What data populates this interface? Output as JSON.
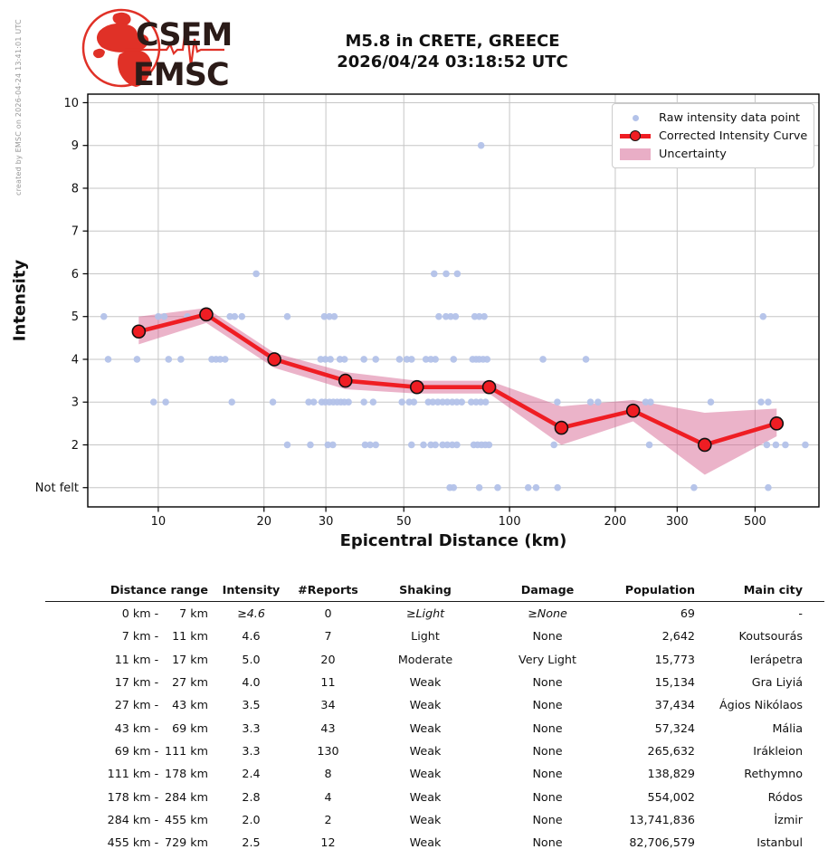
{
  "watermark": "created by EMSC on 2026-04-24 13:41:01 UTC",
  "logo": {
    "org_top": "CSEM",
    "org_bottom": "EMSC"
  },
  "title": {
    "line1": "M5.8 in CRETE, GREECE",
    "line2": "2026/04/24 03:18:52 UTC"
  },
  "chart_data": {
    "type": "scatter",
    "title": "M5.8 in CRETE, GREECE 2026/04/24 03:18:52 UTC",
    "xlabel": "Epicentral Distance (km)",
    "ylabel": "Intensity",
    "x_scale": "log",
    "xlim": [
      6.3,
      760
    ],
    "ylim": [
      0.55,
      10.2
    ],
    "x_ticks": [
      10,
      20,
      30,
      50,
      100,
      200,
      300,
      500
    ],
    "y_ticks": {
      "values": [
        10,
        9,
        8,
        7,
        6,
        5,
        4,
        3,
        2,
        1
      ],
      "labels": [
        "10",
        "9",
        "8",
        "7",
        "6",
        "5",
        "4",
        "3",
        "2",
        "Not felt"
      ]
    },
    "grid": true,
    "legend_position": "upper right",
    "raw_points": {
      "label": "Raw intensity data point",
      "color": "#b3c2e9",
      "points_km_intensity": [
        [
          83,
          9
        ],
        [
          19,
          6
        ],
        [
          61,
          6
        ],
        [
          66,
          6
        ],
        [
          71,
          6
        ],
        [
          7,
          5
        ],
        [
          10,
          5
        ],
        [
          10.4,
          5
        ],
        [
          12.1,
          5
        ],
        [
          16,
          5
        ],
        [
          16.5,
          5
        ],
        [
          17.3,
          5
        ],
        [
          23.3,
          5
        ],
        [
          29.7,
          5
        ],
        [
          30.7,
          5
        ],
        [
          31.7,
          5
        ],
        [
          62.9,
          5
        ],
        [
          65.9,
          5
        ],
        [
          68,
          5
        ],
        [
          70.2,
          5
        ],
        [
          79.6,
          5
        ],
        [
          82,
          5
        ],
        [
          84.7,
          5
        ],
        [
          527,
          5
        ],
        [
          7.2,
          4
        ],
        [
          8.7,
          4
        ],
        [
          10.7,
          4
        ],
        [
          11.6,
          4
        ],
        [
          14.2,
          4
        ],
        [
          14.6,
          4
        ],
        [
          15,
          4
        ],
        [
          15.5,
          4
        ],
        [
          20.9,
          4
        ],
        [
          21.5,
          4
        ],
        [
          29,
          4
        ],
        [
          29.9,
          4
        ],
        [
          30.9,
          4
        ],
        [
          32.9,
          4
        ],
        [
          33.9,
          4
        ],
        [
          38.5,
          4
        ],
        [
          41.6,
          4
        ],
        [
          48.6,
          4
        ],
        [
          51,
          4
        ],
        [
          52.6,
          4
        ],
        [
          57.8,
          4
        ],
        [
          59.7,
          4
        ],
        [
          61.5,
          4
        ],
        [
          69.3,
          4
        ],
        [
          78.5,
          4
        ],
        [
          80.3,
          4
        ],
        [
          82,
          4
        ],
        [
          84.1,
          4
        ],
        [
          86.3,
          4
        ],
        [
          124.5,
          4
        ],
        [
          165,
          4
        ],
        [
          9.7,
          3
        ],
        [
          10.5,
          3
        ],
        [
          16.2,
          3
        ],
        [
          21.2,
          3
        ],
        [
          26.8,
          3
        ],
        [
          27.7,
          3
        ],
        [
          29.2,
          3
        ],
        [
          29.9,
          3
        ],
        [
          30.7,
          3
        ],
        [
          31.5,
          3
        ],
        [
          32.3,
          3
        ],
        [
          33.1,
          3
        ],
        [
          33.9,
          3
        ],
        [
          34.8,
          3
        ],
        [
          38.5,
          3
        ],
        [
          40.9,
          3
        ],
        [
          49.4,
          3
        ],
        [
          51.8,
          3
        ],
        [
          53.4,
          3
        ],
        [
          58.7,
          3
        ],
        [
          60.5,
          3
        ],
        [
          62.5,
          3
        ],
        [
          64.5,
          3
        ],
        [
          66.5,
          3
        ],
        [
          68.7,
          3
        ],
        [
          70.8,
          3
        ],
        [
          73.1,
          3
        ],
        [
          77.8,
          3
        ],
        [
          80.3,
          3
        ],
        [
          82.8,
          3
        ],
        [
          85.5,
          3
        ],
        [
          136.8,
          3
        ],
        [
          170,
          3
        ],
        [
          178.6,
          3
        ],
        [
          244,
          3
        ],
        [
          252,
          3
        ],
        [
          374,
          3
        ],
        [
          520,
          3
        ],
        [
          545,
          3
        ],
        [
          23.3,
          2
        ],
        [
          27.1,
          2
        ],
        [
          30.4,
          2
        ],
        [
          31.4,
          2
        ],
        [
          38.8,
          2
        ],
        [
          40.1,
          2
        ],
        [
          41.6,
          2
        ],
        [
          52.6,
          2
        ],
        [
          56.9,
          2
        ],
        [
          59.7,
          2
        ],
        [
          61.5,
          2
        ],
        [
          64.5,
          2
        ],
        [
          66.5,
          2
        ],
        [
          68.7,
          2
        ],
        [
          70.8,
          2
        ],
        [
          79.1,
          2
        ],
        [
          81.1,
          2
        ],
        [
          83.2,
          2
        ],
        [
          85.3,
          2
        ],
        [
          87.4,
          2
        ],
        [
          133.8,
          2
        ],
        [
          250,
          2
        ],
        [
          540,
          2
        ],
        [
          573,
          2
        ],
        [
          610,
          2
        ],
        [
          695,
          2
        ],
        [
          67.6,
          1
        ],
        [
          69.3,
          1
        ],
        [
          82,
          1
        ],
        [
          92.5,
          1
        ],
        [
          113,
          1
        ],
        [
          119,
          1
        ],
        [
          137,
          1
        ],
        [
          335,
          1
        ],
        [
          545,
          1
        ]
      ]
    },
    "curve": {
      "label": "Corrected Intensity Curve",
      "color": "#ef1d23",
      "x_km": [
        8.8,
        13.7,
        21.4,
        34.1,
        54.5,
        87.5,
        140.5,
        224.8,
        359.5,
        576
      ],
      "intensity": [
        4.65,
        5.05,
        4.0,
        3.5,
        3.35,
        3.35,
        2.4,
        2.8,
        2.0,
        2.5
      ]
    },
    "uncertainty": {
      "label": "Uncertainty",
      "color": "#e9aec6",
      "fill": "#d6618f",
      "fill_opacity": 0.48,
      "upper": [
        5.0,
        5.2,
        4.15,
        3.7,
        3.5,
        3.5,
        2.9,
        3.05,
        2.75,
        2.85
      ],
      "lower": [
        4.35,
        4.85,
        3.8,
        3.3,
        3.2,
        3.2,
        2.0,
        2.55,
        1.3,
        2.2
      ]
    }
  },
  "table": {
    "headers": [
      "Distance range",
      "Intensity",
      "#Reports",
      "Shaking",
      "Damage",
      "Population",
      "Main city"
    ],
    "unit": "km",
    "rows": [
      {
        "from": "0",
        "to": "7",
        "intensity": "≥4.6",
        "reports": "0",
        "shaking": "≥Light",
        "damage": "≥None",
        "population": "69",
        "city": "-",
        "estimated": true
      },
      {
        "from": "7",
        "to": "11",
        "intensity": "4.6",
        "reports": "7",
        "shaking": "Light",
        "damage": "None",
        "population": "2,642",
        "city": "Koutsourás",
        "estimated": false
      },
      {
        "from": "11",
        "to": "17",
        "intensity": "5.0",
        "reports": "20",
        "shaking": "Moderate",
        "damage": "Very Light",
        "population": "15,773",
        "city": "Ierápetra",
        "estimated": false
      },
      {
        "from": "17",
        "to": "27",
        "intensity": "4.0",
        "reports": "11",
        "shaking": "Weak",
        "damage": "None",
        "population": "15,134",
        "city": "Gra Liyiá",
        "estimated": false
      },
      {
        "from": "27",
        "to": "43",
        "intensity": "3.5",
        "reports": "34",
        "shaking": "Weak",
        "damage": "None",
        "population": "37,434",
        "city": "Ágios Nikólaos",
        "estimated": false
      },
      {
        "from": "43",
        "to": "69",
        "intensity": "3.3",
        "reports": "43",
        "shaking": "Weak",
        "damage": "None",
        "population": "57,324",
        "city": "Mália",
        "estimated": false
      },
      {
        "from": "69",
        "to": "111",
        "intensity": "3.3",
        "reports": "130",
        "shaking": "Weak",
        "damage": "None",
        "population": "265,632",
        "city": "Irákleion",
        "estimated": false
      },
      {
        "from": "111",
        "to": "178",
        "intensity": "2.4",
        "reports": "8",
        "shaking": "Weak",
        "damage": "None",
        "population": "138,829",
        "city": "Rethymno",
        "estimated": false
      },
      {
        "from": "178",
        "to": "284",
        "intensity": "2.8",
        "reports": "4",
        "shaking": "Weak",
        "damage": "None",
        "population": "554,002",
        "city": "Ródos",
        "estimated": false
      },
      {
        "from": "284",
        "to": "455",
        "intensity": "2.0",
        "reports": "2",
        "shaking": "Weak",
        "damage": "None",
        "population": "13,741,836",
        "city": "İzmir",
        "estimated": false
      },
      {
        "from": "455",
        "to": "729",
        "intensity": "2.5",
        "reports": "12",
        "shaking": "Weak",
        "damage": "None",
        "population": "82,706,579",
        "city": "Istanbul",
        "estimated": false
      }
    ]
  },
  "colors": {
    "raw_point": "#b3c2e9",
    "curve_red": "#ef1d23",
    "uncertainty_pink": "#e9aec6",
    "grid": "#c6c6c6",
    "spine": "#000000",
    "logo_red": "#e03127",
    "logo_dark": "#2b1b18",
    "watermark_gray": "#989898"
  }
}
